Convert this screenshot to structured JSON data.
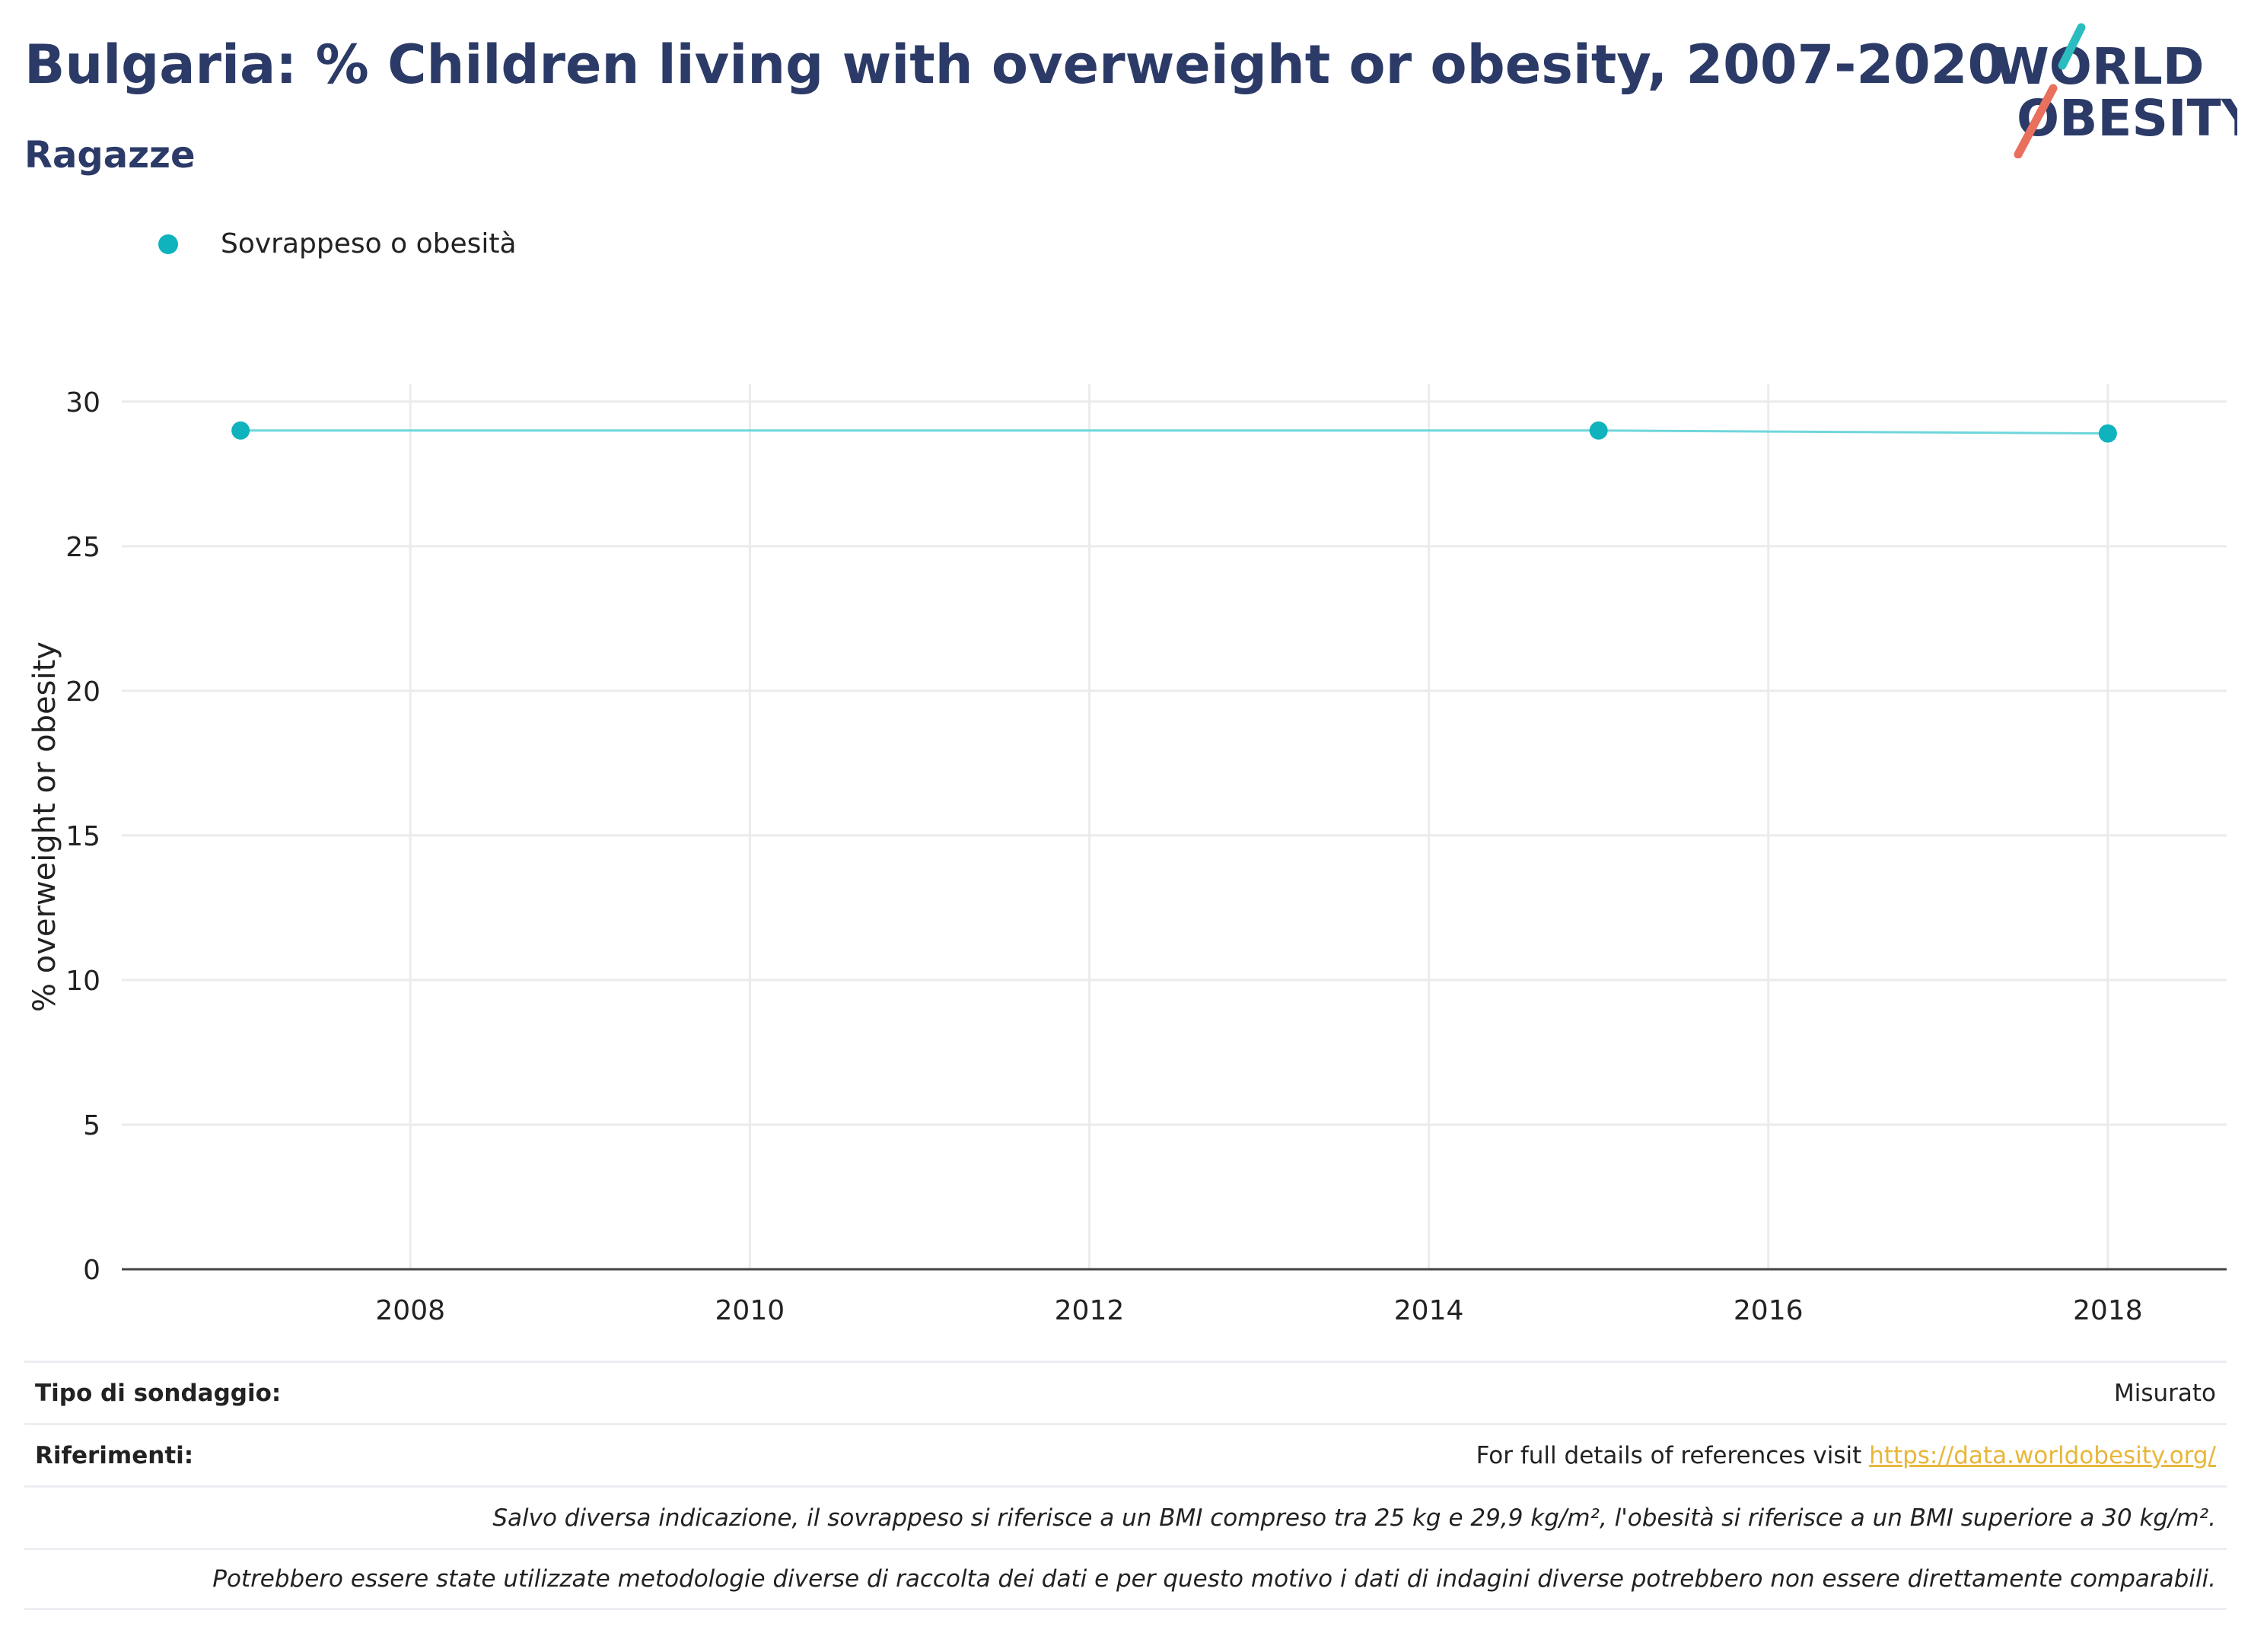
{
  "header": {
    "title": "Bulgaria: % Children living with overweight or obesity, 2007-2020",
    "subtitle": "Ragazze"
  },
  "logo": {
    "line1": "WORLD",
    "line2": "OBESITY",
    "text_color": "#2b3a67",
    "slash_top_color": "#2bbcbf",
    "slash_bottom_color": "#e8705d"
  },
  "chart_data": {
    "type": "line",
    "ylabel": "% overweight or obesity",
    "xlabel": "",
    "x_ticks": [
      2008,
      2010,
      2012,
      2014,
      2016,
      2018
    ],
    "y_ticks": [
      0,
      5,
      10,
      15,
      20,
      25,
      30
    ],
    "xlim": [
      2006.3,
      2018.7
    ],
    "ylim": [
      0,
      30.6
    ],
    "grid": true,
    "legend_position": "top-left",
    "series": [
      {
        "name": "Sovrappeso o obesità",
        "color": "#0eb3bd",
        "line_color": "#6fd6db",
        "x": [
          2007,
          2015,
          2018
        ],
        "y": [
          29.0,
          29.0,
          28.9
        ]
      }
    ]
  },
  "footer": {
    "survey_label": "Tipo di sondaggio:",
    "survey_value": "Misurato",
    "refs_label": "Riferimenti:",
    "refs_text": "For full details of references visit ",
    "refs_link": "https://data.worldobesity.org/",
    "note1": "Salvo diversa indicazione, il sovrappeso si riferisce a un BMI compreso tra 25 kg e 29,9 kg/m², l'obesità si riferisce a un BMI superiore a 30 kg/m².",
    "note2": "Potrebbero essere state utilizzate metodologie diverse di raccolta dei dati e per questo motivo i dati di indagini diverse potrebbero non essere direttamente comparabili."
  }
}
